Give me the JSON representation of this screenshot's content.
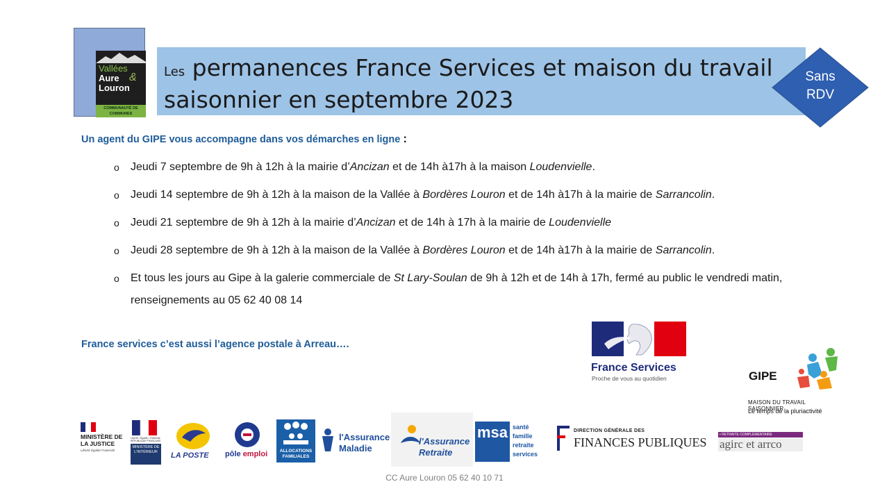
{
  "logo": {
    "line1": "Vallées",
    "line2": "Aure",
    "line3": "Louron",
    "ampersand": "&",
    "sub": "COMMUNAUTÉ DE COMMUNES"
  },
  "title": {
    "prefix": "Les",
    "main": "permanences France Services et maison du travail saisonnier en septembre 2023"
  },
  "badge": {
    "line1": "Sans",
    "line2": "RDV",
    "color": "#2e5fb0"
  },
  "intro": {
    "text": "Un agent du GIPE vous accompagne dans vos démarches en ligne",
    "colon": ":"
  },
  "schedule": [
    {
      "bullet": "o",
      "a": "Jeudi 7 septembre  de 9h à 12h à la mairie d’",
      "place1": "Ancizan",
      "b": " et de 14h à17h à la maison ",
      "place2": "Loudenvielle",
      "c": "."
    },
    {
      "bullet": "o",
      "a": "Jeudi 14 septembre  de 9h à 12h à la maison de la Vallée à ",
      "place1": "Bordères Louron",
      "b": " et de 14h à17h à la mairie de ",
      "place2": "Sarrancolin",
      "c": "."
    },
    {
      "bullet": "o",
      "a": "Jeudi 21 septembre  de 9h à 12h à la mairie d’",
      "place1": "Ancizan",
      "b": " et de 14h à 17h à la mairie de ",
      "place2": "Loudenvielle",
      "c": ""
    },
    {
      "bullet": "o",
      "a": "Jeudi 28 septembre  de 9h à 12h à la maison de la Vallée à ",
      "place1": "Bordères Louron",
      "b": " et de 14h à17h à la mairie de ",
      "place2": "Sarrancolin",
      "c": "."
    },
    {
      "bullet": "o",
      "a": "Et tous les jours  au Gipe à la galerie commerciale de ",
      "place1": "St Lary-Soulan",
      "b": " de 9h à 12h et de 14h à 17h, fermé  au public le vendredi  matin, renseignements  au 05 62 40 08 14",
      "place2": "",
      "c": ""
    }
  ],
  "outro": "France services c’est aussi l’agence postale à Arreau….",
  "france_services": {
    "name": "France Services",
    "tagline": "Proche de vous au quotidien"
  },
  "gipe": {
    "name": "GIPE",
    "sub1": "MAISON DU TRAVAIL SAISONNIER",
    "sub2": "Le temps de la pluriactivité"
  },
  "partners": {
    "justice": {
      "t1": "MINISTÈRE DE LA JUSTICE",
      "t2": "Liberté Égalité Fraternité"
    },
    "interieur": {
      "t0": "Liberté • Égalité • Fraternité RÉPUBLIQUE FRANÇAISE",
      "box": "MINISTÈRE DE L'INTÉRIEUR"
    },
    "poste": "LA POSTE",
    "pole": {
      "a": "pôle",
      "b": "emploi"
    },
    "caf": "ALLOCATIONS FAMILIALES",
    "maladie": {
      "l1": "l'Assurance",
      "l2": "Maladie"
    },
    "retraite": {
      "l1": "l'Assurance",
      "l2": "Retraite"
    },
    "msa": {
      "box": "msa",
      "w1": "santé",
      "w2": "famille",
      "w3": "retraite",
      "w4": "services"
    },
    "dgfip": {
      "t1": "DIRECTION GÉNÉRALE DES",
      "t2": "FINANCES PUBLIQUES"
    },
    "agirc": {
      "bar": "• RETRAITE COMPLÉMENTAIRE",
      "name": "agirc et arrco"
    }
  },
  "footer": "CC Aure Louron  05 62 40 10 71"
}
